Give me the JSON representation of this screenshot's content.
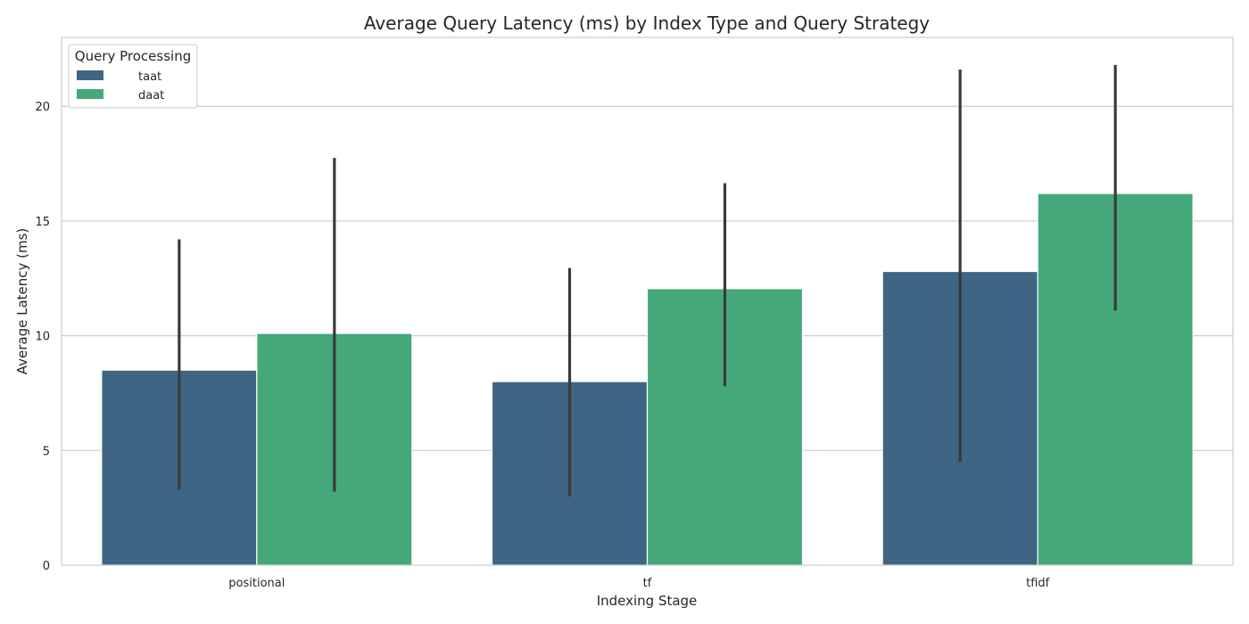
{
  "chart_data": {
    "type": "bar",
    "title": "Average Query Latency (ms) by Index Type and Query Strategy",
    "xlabel": "Indexing Stage",
    "ylabel": "Average Latency (ms)",
    "categories": [
      "positional",
      "tf",
      "tfidf"
    ],
    "ylim": [
      0,
      23
    ],
    "yticks": [
      0,
      5,
      10,
      15,
      20
    ],
    "grid": true,
    "legend": {
      "title": "Query Processing",
      "placement": "top-left"
    },
    "series": [
      {
        "name": "taat",
        "color": "#3e6583",
        "values": [
          8.5,
          8.0,
          12.8
        ],
        "ci_low": [
          3.3,
          3.0,
          4.5
        ],
        "ci_high": [
          14.2,
          12.95,
          21.6
        ]
      },
      {
        "name": "daat",
        "color": "#45a878",
        "values": [
          10.1,
          12.05,
          16.2
        ],
        "ci_low": [
          3.2,
          7.8,
          11.1
        ],
        "ci_high": [
          17.75,
          16.65,
          21.8
        ]
      }
    ]
  }
}
